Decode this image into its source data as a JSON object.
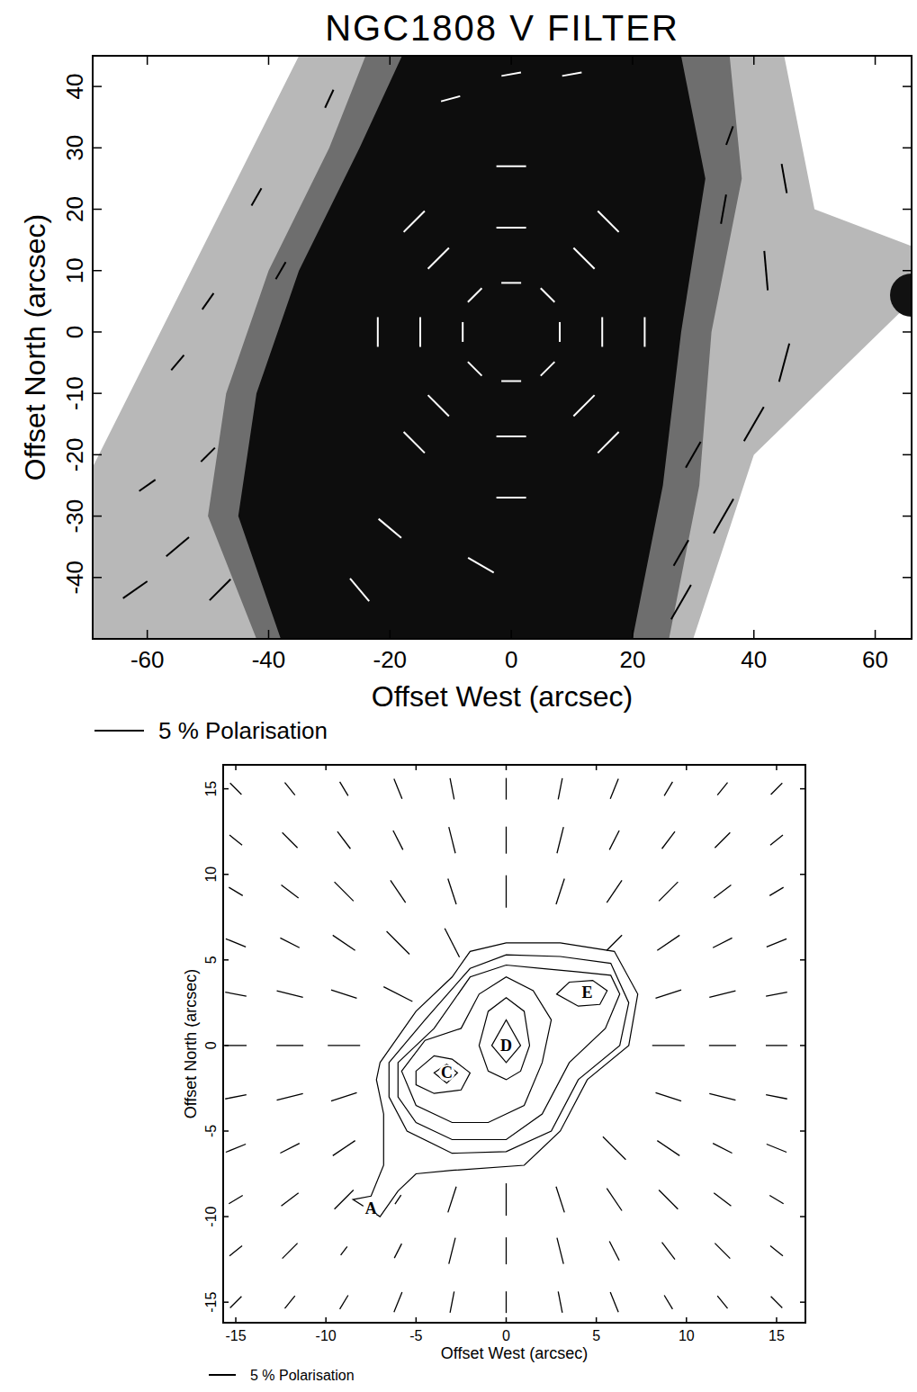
{
  "chart_data": [
    {
      "type": "vector_field",
      "title": "NGC1808 V FILTER",
      "x_label": "Offset West (arcsec)",
      "y_label": "Offset North (arcsec)",
      "xlim": [
        -69,
        66
      ],
      "ylim": [
        -50,
        45
      ],
      "xticks": [
        -60,
        -40,
        -20,
        0,
        20,
        40,
        60
      ],
      "yticks": [
        -40,
        -30,
        -20,
        -10,
        0,
        10,
        20,
        30,
        40
      ],
      "scale_bar": {
        "value": 5,
        "label": "5 % Polarisation"
      },
      "series": [
        {
          "color": "#ffffff",
          "x": [
            0,
            0,
            8,
            -8,
            6,
            -6,
            6,
            -6,
            0,
            0,
            15,
            -15,
            12,
            -12,
            12,
            -12,
            0,
            0,
            22,
            -22,
            16,
            -16,
            16,
            -16,
            -20,
            -5,
            -25,
            0,
            10,
            -10
          ],
          "y": [
            8,
            -8,
            0,
            0,
            6,
            6,
            -6,
            -6,
            17,
            -17,
            0,
            0,
            12,
            12,
            -12,
            -12,
            27,
            -27,
            0,
            0,
            18,
            18,
            -18,
            -18,
            -32,
            -38,
            -42,
            42,
            42,
            38
          ],
          "angle": [
            0,
            0,
            90,
            90,
            135,
            45,
            45,
            135,
            0,
            0,
            90,
            90,
            135,
            45,
            45,
            135,
            0,
            0,
            90,
            90,
            135,
            45,
            45,
            135,
            140,
            150,
            130,
            10,
            10,
            15
          ],
          "polarisation": [
            2,
            2,
            2,
            2,
            2,
            2,
            2,
            2,
            3,
            3,
            3,
            3,
            3,
            3,
            3,
            3,
            3,
            3,
            3,
            3,
            3,
            3,
            3,
            3,
            3,
            3,
            3,
            2,
            2,
            2
          ]
        },
        {
          "color": "#000000",
          "x": [
            36,
            35,
            45,
            42,
            45,
            40,
            30,
            35,
            28,
            28,
            -60,
            -55,
            -62,
            -48,
            -50,
            -55,
            -50,
            -38,
            -42,
            -30
          ],
          "y": [
            32,
            20,
            25,
            10,
            -5,
            -15,
            -20,
            -30,
            -36,
            -44,
            -25,
            -35,
            -42,
            -42,
            -20,
            -5,
            5,
            10,
            22,
            38
          ],
          "angle": [
            70,
            80,
            100,
            95,
            75,
            60,
            60,
            60,
            60,
            60,
            35,
            40,
            35,
            45,
            45,
            50,
            55,
            60,
            60,
            65
          ],
          "polarisation": [
            2,
            3,
            3,
            4,
            4,
            4,
            3,
            4,
            3,
            4,
            2,
            3,
            3,
            3,
            2,
            2,
            2,
            2,
            2,
            2
          ]
        }
      ]
    },
    {
      "type": "vector_field",
      "x_label": "Offset West (arcsec)",
      "y_label": "Offset North (arcsec)",
      "xlim": [
        -15.7,
        16.6
      ],
      "ylim": [
        -16.2,
        16.4
      ],
      "xticks": [
        -15,
        -10,
        -5,
        0,
        5,
        10,
        15
      ],
      "yticks": [
        -15,
        -10,
        -5,
        0,
        5,
        10,
        15
      ],
      "scale_bar": {
        "value": 5,
        "label": "5 % Polarisation"
      },
      "series": [
        {
          "color": "#000000",
          "x": [
            -15,
            -12,
            -9,
            -6,
            -3,
            0,
            3,
            6,
            9,
            12,
            15,
            -15,
            -12,
            -9,
            -6,
            -3,
            0,
            3,
            6,
            9,
            12,
            15,
            -15,
            -12,
            -9,
            -6,
            -3,
            0,
            3,
            6,
            9,
            12,
            15,
            -15,
            -12,
            -9,
            -6,
            -3,
            6,
            9,
            12,
            15,
            -15,
            -12,
            -9,
            -6,
            9,
            12,
            15,
            -15,
            -12,
            -9,
            9,
            12,
            15,
            -15,
            -12,
            -9,
            9,
            12,
            15,
            -15,
            -12,
            -9,
            6,
            9,
            12,
            15,
            -15,
            -12,
            -9,
            -6,
            -3,
            0,
            3,
            6,
            9,
            12,
            15,
            -15,
            -12,
            -9,
            -6,
            -3,
            0,
            3,
            6,
            9,
            12,
            15,
            -15,
            -12,
            -9,
            -6,
            -3,
            0,
            3,
            6,
            9,
            12,
            15
          ],
          "y": [
            15,
            15,
            15,
            15,
            15,
            15,
            15,
            15,
            15,
            15,
            15,
            12,
            12,
            12,
            12,
            12,
            12,
            12,
            12,
            12,
            12,
            12,
            9,
            9,
            9,
            9,
            9,
            9,
            9,
            9,
            9,
            9,
            9,
            6,
            6,
            6,
            6,
            6,
            6,
            6,
            6,
            6,
            3,
            3,
            3,
            3,
            3,
            3,
            3,
            0,
            0,
            0,
            0,
            0,
            0,
            -3,
            -3,
            -3,
            -3,
            -3,
            -3,
            -6,
            -6,
            -6,
            -6,
            -6,
            -6,
            -6,
            -9,
            -9,
            -9,
            -9,
            -9,
            -9,
            -9,
            -9,
            -9,
            -9,
            -9,
            -12,
            -12,
            -12,
            -12,
            -12,
            -12,
            -12,
            -12,
            -12,
            -12,
            -12,
            -15,
            -15,
            -15,
            -15,
            -15,
            -15,
            -15,
            -15,
            -15,
            -15,
            -15
          ],
          "angle": [
            -45,
            -51,
            -59,
            -68,
            -79,
            90,
            79,
            68,
            59,
            51,
            45,
            -39,
            -45,
            -53,
            -63,
            -76,
            90,
            76,
            63,
            53,
            45,
            39,
            -31,
            -37,
            -45,
            -56,
            -72,
            90,
            72,
            56,
            45,
            37,
            31,
            -22,
            -27,
            -34,
            -45,
            -63,
            45,
            34,
            27,
            22,
            -11,
            -14,
            -18,
            -27,
            18,
            14,
            11,
            0,
            0,
            0,
            0,
            0,
            0,
            11,
            14,
            18,
            -18,
            -14,
            -11,
            22,
            27,
            34,
            -45,
            -34,
            -27,
            -22,
            31,
            37,
            45,
            56,
            72,
            90,
            -72,
            -56,
            -45,
            -37,
            -31,
            39,
            45,
            53,
            63,
            76,
            90,
            -76,
            -63,
            -53,
            -45,
            -39,
            45,
            51,
            59,
            68,
            79,
            90,
            -79,
            -68,
            -59,
            -51,
            -45
          ],
          "polarisation": [
            3,
            3,
            3,
            4,
            4,
            4,
            4,
            4,
            3,
            3,
            3,
            3,
            4,
            4,
            4,
            5,
            5,
            5,
            4,
            4,
            4,
            3,
            3,
            4,
            5,
            5,
            5,
            6,
            5,
            5,
            5,
            4,
            3,
            4,
            4,
            5,
            6,
            6,
            4,
            5,
            4,
            4,
            4,
            5,
            5,
            6,
            5,
            5,
            4,
            4,
            5,
            6,
            6,
            5,
            4,
            4,
            5,
            5,
            5,
            5,
            4,
            4,
            4,
            5,
            6,
            5,
            4,
            4,
            3,
            4,
            5,
            2,
            5,
            6,
            5,
            5,
            5,
            4,
            3,
            3,
            4,
            2,
            3,
            5,
            5,
            5,
            4,
            4,
            4,
            3,
            3,
            3,
            3,
            4,
            4,
            4,
            4,
            4,
            3,
            3,
            3
          ]
        }
      ],
      "contours": [
        {
          "x": [
            -7,
            -5,
            -3,
            -2,
            0,
            3,
            6,
            7.3,
            6.8,
            4.5,
            3,
            1,
            -3,
            -5,
            -6,
            -7,
            -8.5,
            -7.5,
            -6.8,
            -6.8,
            -7.2
          ],
          "y": [
            -1,
            2,
            4,
            5.5,
            6,
            6,
            5.5,
            3,
            0,
            -2,
            -5,
            -7,
            -7.3,
            -7.5,
            -8.5,
            -10,
            -9,
            -8.8,
            -7,
            -4,
            -2
          ]
        },
        {
          "x": [
            -6.5,
            -4.5,
            -2,
            0,
            3,
            5.8,
            6.8,
            6.3,
            4,
            2.5,
            0,
            -3,
            -5.5,
            -6.5
          ],
          "y": [
            -1,
            1.5,
            4.5,
            5.3,
            5.2,
            4.8,
            2.5,
            0,
            -2,
            -5,
            -6.2,
            -6.3,
            -5,
            -3
          ]
        },
        {
          "x": [
            -6,
            -4,
            -2,
            0,
            2,
            4,
            5.8,
            6.3,
            5.5,
            3.5,
            2,
            0,
            -3,
            -5,
            -6
          ],
          "y": [
            -1,
            1,
            4,
            4.7,
            4.5,
            4.3,
            4.1,
            3,
            1,
            -1,
            -4,
            -5.5,
            -5.5,
            -4.5,
            -3
          ]
        },
        {
          "x": [
            -5.8,
            -4.5,
            -2.5,
            -1.5,
            0,
            1.5,
            2.5,
            2,
            1,
            -1,
            -3,
            -5
          ],
          "y": [
            -1.5,
            0.3,
            1,
            3,
            4,
            3.2,
            1.5,
            -1,
            -3.5,
            -4.5,
            -4.5,
            -3.5
          ]
        },
        {
          "x": [
            -5,
            -4,
            -3,
            -2,
            -2.5,
            -4,
            -5
          ],
          "y": [
            -1.5,
            -0.6,
            -0.8,
            -1.6,
            -2.6,
            -2.8,
            -2.3
          ]
        },
        {
          "x": [
            -4,
            -3.3,
            -2.7,
            -3.3
          ],
          "y": [
            -1.6,
            -1.1,
            -1.6,
            -2.2
          ]
        },
        {
          "x": [
            -1.5,
            -1,
            0,
            1,
            1.3,
            0.8,
            0,
            -1
          ],
          "y": [
            0,
            2,
            2.8,
            2,
            0,
            -1.5,
            -2,
            -1.5
          ]
        },
        {
          "x": [
            -0.8,
            0,
            0.8,
            0
          ],
          "y": [
            0,
            1.5,
            0,
            -1
          ]
        },
        {
          "x": [
            2.8,
            3.5,
            4.8,
            5.6,
            5.2,
            4
          ],
          "y": [
            3,
            3.7,
            3.8,
            3.2,
            2.4,
            2.3
          ]
        }
      ],
      "annotations": [
        {
          "text": "A",
          "x": -7.5,
          "y": -9.5
        },
        {
          "text": "C",
          "x": -3.3,
          "y": -1.6
        },
        {
          "text": "D",
          "x": 0,
          "y": 0
        },
        {
          "text": "E",
          "x": 4.5,
          "y": 3.1
        }
      ]
    }
  ]
}
